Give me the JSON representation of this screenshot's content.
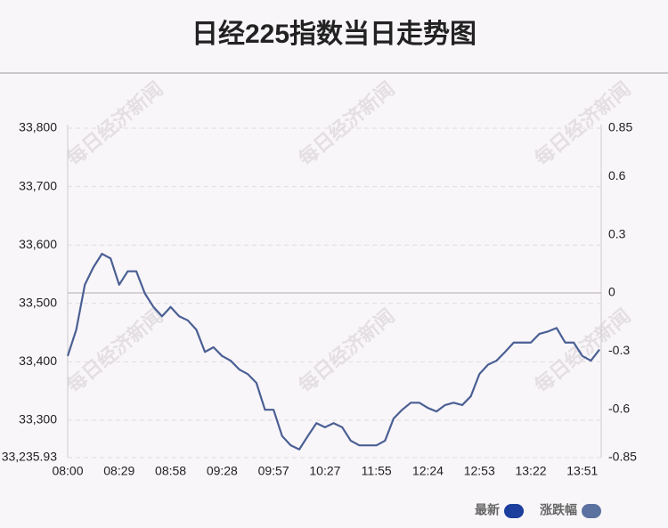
{
  "chart_data": {
    "type": "line",
    "title": "日经225指数当日走势图",
    "watermark": "每日经济新闻",
    "categories": [
      "08:00",
      null,
      null,
      null,
      null,
      null,
      "08:29",
      null,
      null,
      null,
      null,
      null,
      "08:58",
      null,
      null,
      null,
      null,
      null,
      "09:28",
      null,
      null,
      null,
      null,
      null,
      "09:57",
      null,
      null,
      null,
      null,
      null,
      "10:27",
      null,
      null,
      null,
      null,
      null,
      "11:55",
      null,
      null,
      null,
      null,
      null,
      "12:24",
      null,
      null,
      null,
      null,
      null,
      "12:53",
      null,
      null,
      null,
      null,
      null,
      "13:22",
      null,
      null,
      null,
      null,
      null,
      "13:51",
      null,
      null
    ],
    "series": [
      {
        "color": "#4a5f94",
        "values": [
          33410,
          33455,
          33532,
          33562,
          33585,
          33577,
          33532,
          33555,
          33555,
          33517,
          33494,
          33478,
          33494,
          33478,
          33471,
          33455,
          33417,
          33425,
          33410,
          33402,
          33387,
          33379,
          33364,
          33318,
          33318,
          33273,
          33257,
          33250,
          33273,
          33295,
          33288,
          33295,
          33288,
          33265,
          33257,
          33257,
          33257,
          33265,
          33303,
          33318,
          33330,
          33330,
          33321,
          33315,
          33326,
          33330,
          33326,
          33341,
          33379,
          33395,
          33402,
          33417,
          33433,
          33433,
          33433,
          33448,
          33452,
          33458,
          33433,
          33433,
          33410,
          33402,
          33421
        ]
      }
    ],
    "legend": [
      {
        "name": "最新",
        "color": "#1c3f9e"
      },
      {
        "name": "涨跌幅",
        "color": "#5b72a0"
      }
    ],
    "ylim": [
      33235.93,
      33800
    ],
    "yticks": [
      {
        "value": 33235.93,
        "label": "33,235.93"
      },
      {
        "value": 33300,
        "label": "33,300"
      },
      {
        "value": 33400,
        "label": "33,400"
      },
      {
        "value": 33500,
        "label": "33,500"
      },
      {
        "value": 33600,
        "label": "33,600"
      },
      {
        "value": 33700,
        "label": "33,700"
      },
      {
        "value": 33800,
        "label": "33,800"
      }
    ],
    "y2lim": [
      -0.85,
      0.85
    ],
    "y2ticks": [
      -0.85,
      -0.6,
      -0.3,
      0,
      0.3,
      0.6,
      0.85
    ],
    "grid": true
  }
}
